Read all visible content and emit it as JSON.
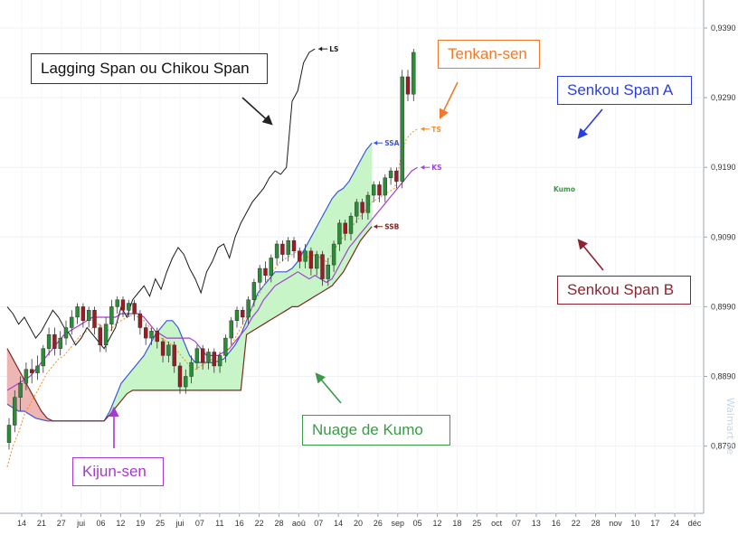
{
  "chart_data": {
    "type": "line",
    "price_ticks": [
      "0,9390",
      "0,9290",
      "0,9190",
      "0,9090",
      "0,8990",
      "0,8890",
      "0,8790"
    ],
    "date_ticks": [
      "14",
      "21",
      "27",
      "jui",
      "06",
      "12",
      "19",
      "25",
      "jui",
      "07",
      "11",
      "16",
      "22",
      "28",
      "aoû",
      "07",
      "14",
      "20",
      "26",
      "sep",
      "05",
      "12",
      "18",
      "25",
      "oct",
      "07",
      "13",
      "16",
      "22",
      "28",
      "nov",
      "10",
      "17",
      "24",
      "déc"
    ],
    "lagging_span": [
      0.899,
      0.898,
      0.8965,
      0.8975,
      0.896,
      0.8945,
      0.8955,
      0.897,
      0.8985,
      0.8975,
      0.896,
      0.895,
      0.8935,
      0.8945,
      0.896,
      0.895,
      0.894,
      0.893,
      0.8945,
      0.896,
      0.899,
      0.8975,
      0.9,
      0.901,
      0.902,
      0.9005,
      0.903,
      0.9015,
      0.904,
      0.906,
      0.9075,
      0.9065,
      0.9045,
      0.903,
      0.901,
      0.904,
      0.9055,
      0.9075,
      0.908,
      0.906,
      0.909,
      0.911,
      0.9125,
      0.914,
      0.915,
      0.916,
      0.9175,
      0.9185,
      0.918,
      0.919,
      0.9285,
      0.93,
      0.934,
      0.9355,
      0.936
    ],
    "candles": [
      [
        0.8795,
        0.882,
        0.8785,
        0.883
      ],
      [
        0.882,
        0.886,
        0.881,
        0.887
      ],
      [
        0.886,
        0.888,
        0.884,
        0.889
      ],
      [
        0.888,
        0.89,
        0.887,
        0.891
      ],
      [
        0.89,
        0.8895,
        0.888,
        0.8915
      ],
      [
        0.8895,
        0.8905,
        0.8885,
        0.892
      ],
      [
        0.8905,
        0.893,
        0.8895,
        0.8935
      ],
      [
        0.893,
        0.895,
        0.892,
        0.896
      ],
      [
        0.895,
        0.893,
        0.892,
        0.896
      ],
      [
        0.893,
        0.8945,
        0.892,
        0.8955
      ],
      [
        0.8945,
        0.896,
        0.8935,
        0.897
      ],
      [
        0.896,
        0.8975,
        0.895,
        0.8985
      ],
      [
        0.8975,
        0.899,
        0.8965,
        0.8995
      ],
      [
        0.899,
        0.897,
        0.896,
        0.8995
      ],
      [
        0.897,
        0.8985,
        0.896,
        0.899
      ],
      [
        0.8985,
        0.896,
        0.895,
        0.899
      ],
      [
        0.896,
        0.8935,
        0.8925,
        0.8965
      ],
      [
        0.8935,
        0.8965,
        0.8925,
        0.8975
      ],
      [
        0.8965,
        0.899,
        0.8955,
        0.9
      ],
      [
        0.899,
        0.9,
        0.898,
        0.9005
      ],
      [
        0.9,
        0.8985,
        0.8975,
        0.9005
      ],
      [
        0.8985,
        0.8995,
        0.8975,
        0.9
      ],
      [
        0.8995,
        0.898,
        0.897,
        0.9
      ],
      [
        0.898,
        0.896,
        0.895,
        0.8985
      ],
      [
        0.896,
        0.8945,
        0.8935,
        0.8965
      ],
      [
        0.8945,
        0.8955,
        0.8935,
        0.896
      ],
      [
        0.8955,
        0.894,
        0.893,
        0.896
      ],
      [
        0.894,
        0.892,
        0.891,
        0.8945
      ],
      [
        0.892,
        0.8935,
        0.891,
        0.894
      ],
      [
        0.8935,
        0.8905,
        0.8895,
        0.894
      ],
      [
        0.8905,
        0.8875,
        0.8865,
        0.891
      ],
      [
        0.8875,
        0.889,
        0.8865,
        0.89
      ],
      [
        0.889,
        0.891,
        0.888,
        0.892
      ],
      [
        0.891,
        0.893,
        0.89,
        0.8935
      ],
      [
        0.893,
        0.891,
        0.89,
        0.8935
      ],
      [
        0.891,
        0.8925,
        0.89,
        0.893
      ],
      [
        0.8925,
        0.8905,
        0.8895,
        0.893
      ],
      [
        0.8905,
        0.892,
        0.8895,
        0.8925
      ],
      [
        0.892,
        0.8945,
        0.891,
        0.895
      ],
      [
        0.8945,
        0.897,
        0.8935,
        0.8975
      ],
      [
        0.897,
        0.8985,
        0.896,
        0.899
      ],
      [
        0.8985,
        0.8975,
        0.8965,
        0.899
      ],
      [
        0.8975,
        0.9,
        0.8965,
        0.9005
      ],
      [
        0.9,
        0.9025,
        0.899,
        0.903
      ],
      [
        0.9025,
        0.9045,
        0.9015,
        0.905
      ],
      [
        0.9045,
        0.9035,
        0.9025,
        0.9055
      ],
      [
        0.9035,
        0.906,
        0.9025,
        0.9065
      ],
      [
        0.906,
        0.908,
        0.905,
        0.9085
      ],
      [
        0.908,
        0.9065,
        0.9055,
        0.9085
      ],
      [
        0.9065,
        0.9085,
        0.9055,
        0.909
      ],
      [
        0.9085,
        0.907,
        0.906,
        0.909
      ],
      [
        0.907,
        0.9055,
        0.9045,
        0.9075
      ],
      [
        0.9055,
        0.907,
        0.9045,
        0.908
      ],
      [
        0.907,
        0.9045,
        0.9035,
        0.9075
      ],
      [
        0.9045,
        0.9065,
        0.9035,
        0.907
      ],
      [
        0.9065,
        0.903,
        0.902,
        0.907
      ],
      [
        0.903,
        0.905,
        0.902,
        0.906
      ],
      [
        0.905,
        0.908,
        0.904,
        0.9085
      ],
      [
        0.908,
        0.911,
        0.907,
        0.9115
      ],
      [
        0.911,
        0.9095,
        0.9085,
        0.9115
      ],
      [
        0.9095,
        0.912,
        0.9085,
        0.9125
      ],
      [
        0.912,
        0.914,
        0.911,
        0.9145
      ],
      [
        0.914,
        0.9125,
        0.9115,
        0.9145
      ],
      [
        0.9125,
        0.915,
        0.9115,
        0.9155
      ],
      [
        0.915,
        0.9165,
        0.914,
        0.917
      ],
      [
        0.9165,
        0.915,
        0.914,
        0.917
      ],
      [
        0.915,
        0.9175,
        0.914,
        0.918
      ],
      [
        0.9175,
        0.9185,
        0.9165,
        0.919
      ],
      [
        0.9185,
        0.917,
        0.916,
        0.919
      ],
      [
        0.917,
        0.932,
        0.916,
        0.933
      ],
      [
        0.932,
        0.9295,
        0.9285,
        0.933
      ],
      [
        0.9295,
        0.9355,
        0.9285,
        0.936
      ]
    ],
    "tenkan_sen": [
      0.876,
      0.879,
      0.881,
      0.8835,
      0.885,
      0.8865,
      0.888,
      0.8895,
      0.8905,
      0.8915,
      0.892,
      0.893,
      0.894,
      0.895,
      0.8955,
      0.896,
      0.8965,
      0.896,
      0.8955,
      0.8965,
      0.897,
      0.8975,
      0.8978,
      0.8975,
      0.897,
      0.896,
      0.895,
      0.8945,
      0.894,
      0.8935,
      0.8925,
      0.8915,
      0.8905,
      0.89,
      0.8905,
      0.891,
      0.8915,
      0.8915,
      0.892,
      0.893,
      0.8945,
      0.896,
      0.8975,
      0.899,
      0.9005,
      0.902,
      0.9035,
      0.9045,
      0.9055,
      0.906,
      0.9065,
      0.907,
      0.9065,
      0.906,
      0.9065,
      0.906,
      0.9055,
      0.9065,
      0.908,
      0.909,
      0.91,
      0.911,
      0.912,
      0.913,
      0.914,
      0.9145,
      0.915,
      0.9155,
      0.916,
      0.92,
      0.923,
      0.924,
      0.9245
    ],
    "kijun_sen": [
      0.887,
      0.8875,
      0.888,
      0.8885,
      0.889,
      0.89,
      0.891,
      0.892,
      0.893,
      0.894,
      0.895,
      0.8955,
      0.896,
      0.8965,
      0.897,
      0.8975,
      0.8975,
      0.8975,
      0.8975,
      0.8975,
      0.898,
      0.898,
      0.898,
      0.898,
      0.8975,
      0.8965,
      0.8955,
      0.895,
      0.8945,
      0.8945,
      0.8945,
      0.8945,
      0.8945,
      0.894,
      0.893,
      0.892,
      0.892,
      0.892,
      0.8925,
      0.893,
      0.894,
      0.895,
      0.896,
      0.8975,
      0.8985,
      0.9,
      0.901,
      0.902,
      0.9025,
      0.903,
      0.9035,
      0.904,
      0.9035,
      0.903,
      0.9035,
      0.903,
      0.9025,
      0.903,
      0.9045,
      0.906,
      0.9075,
      0.9085,
      0.9095,
      0.9105,
      0.9115,
      0.9125,
      0.9135,
      0.9145,
      0.9155,
      0.9165,
      0.9175,
      0.9185,
      0.919
    ],
    "senkou_span_a": [
      0.885,
      0.8845,
      0.884,
      0.884,
      0.8835,
      0.883,
      0.8828,
      0.8826,
      0.8826,
      0.8826,
      0.8826,
      0.8826,
      0.8826,
      0.8826,
      0.8826,
      0.8826,
      0.8826,
      0.8826,
      0.884,
      0.886,
      0.888,
      0.889,
      0.89,
      0.891,
      0.892,
      0.8935,
      0.895,
      0.896,
      0.897,
      0.897,
      0.896,
      0.894,
      0.892,
      0.891,
      0.891,
      0.891,
      0.891,
      0.8912,
      0.8915,
      0.8925,
      0.8935,
      0.895,
      0.897,
      0.899,
      0.901,
      0.902,
      0.903,
      0.904,
      0.904,
      0.904,
      0.9045,
      0.9055,
      0.907,
      0.9085,
      0.91,
      0.9115,
      0.913,
      0.9145,
      0.9155,
      0.916,
      0.917,
      0.9185,
      0.92,
      0.9215,
      0.9225
    ],
    "senkou_span_b": [
      0.893,
      0.8915,
      0.89,
      0.8885,
      0.887,
      0.8855,
      0.884,
      0.883,
      0.8826,
      0.8826,
      0.8826,
      0.8826,
      0.8826,
      0.8826,
      0.8826,
      0.8826,
      0.8826,
      0.8826,
      0.8835,
      0.8845,
      0.8855,
      0.8865,
      0.887,
      0.887,
      0.887,
      0.887,
      0.887,
      0.887,
      0.887,
      0.887,
      0.887,
      0.887,
      0.887,
      0.887,
      0.887,
      0.887,
      0.887,
      0.887,
      0.887,
      0.887,
      0.887,
      0.887,
      0.895,
      0.8955,
      0.896,
      0.8965,
      0.897,
      0.8975,
      0.898,
      0.8985,
      0.899,
      0.899,
      0.8995,
      0.9,
      0.9005,
      0.901,
      0.9015,
      0.902,
      0.903,
      0.904,
      0.9055,
      0.907,
      0.9085,
      0.9095,
      0.9105
    ],
    "line_tags": {
      "ls": "LS",
      "ts": "TS",
      "ks": "KS",
      "ssa": "SSA",
      "ssb": "SSB",
      "kumo": "Kumo"
    },
    "annotations": {
      "lagging": "Lagging Span ou Chikou Span",
      "tenkan": "Tenkan-sen",
      "senkou_a": "Senkou Span A",
      "senkou_b": "Senkou Span B",
      "kumo": "Nuage de Kumo",
      "kijun": "Kijun-sen"
    },
    "colors": {
      "candle_up": "#2e8b3a",
      "candle_down": "#9e1b24",
      "lagging": "#1a1a1a",
      "tenkan": "#f28c28",
      "kijun": "#a33fd0",
      "span_a": "#3b57d8",
      "span_b": "#7a2a22",
      "kumo_bull": "#c8f5c8",
      "kumo_bear": "#eeb5b5",
      "callout_lagging": "#333333",
      "callout_tenkan": "#f07a2a",
      "callout_a": "#2a3ee0",
      "callout_b": "#8e2230",
      "callout_kumo": "#3a9a48",
      "callout_kijun": "#a53ad0"
    }
  },
  "watermark": "Walmart Ke"
}
